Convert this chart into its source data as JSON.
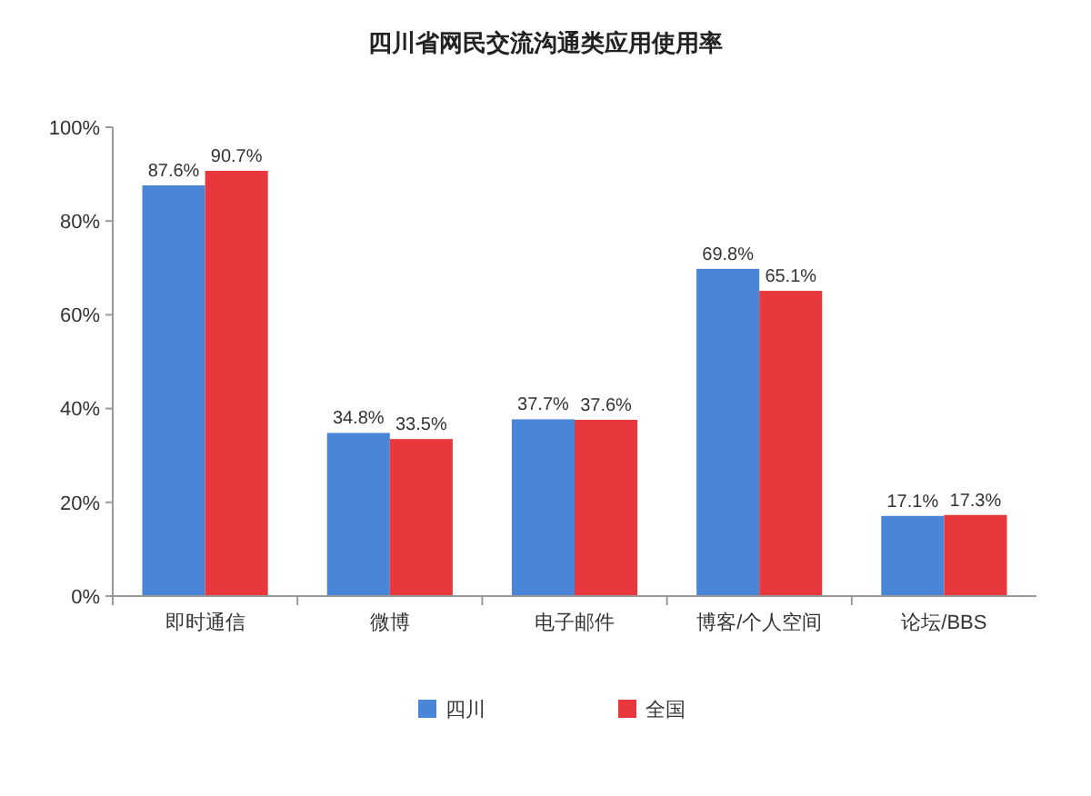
{
  "chart_data": {
    "type": "bar",
    "title": "四川省网民交流沟通类应用使用率",
    "categories": [
      "即时通信",
      "微博",
      "电子邮件",
      "博客/个人空间",
      "论坛/BBS"
    ],
    "series": [
      {
        "name": "四川",
        "color": "#4a86d8",
        "values": [
          87.6,
          34.8,
          37.7,
          69.8,
          17.1
        ],
        "value_labels": [
          "87.6%",
          "34.8%",
          "37.7%",
          "69.8%",
          "17.1%"
        ]
      },
      {
        "name": "全国",
        "color": "#e8383d",
        "values": [
          90.7,
          33.5,
          37.6,
          65.1,
          17.3
        ],
        "value_labels": [
          "90.7%",
          "33.5%",
          "37.6%",
          "65.1%",
          "17.3%"
        ]
      }
    ],
    "ylim": [
      0,
      100
    ],
    "yticks": [
      {
        "value": 0,
        "label": "0%"
      },
      {
        "value": 20,
        "label": "20%"
      },
      {
        "value": 40,
        "label": "40%"
      },
      {
        "value": 60,
        "label": "60%"
      },
      {
        "value": 80,
        "label": "80%"
      },
      {
        "value": 100,
        "label": "100%"
      }
    ],
    "grid": false,
    "legend": "bottom"
  }
}
